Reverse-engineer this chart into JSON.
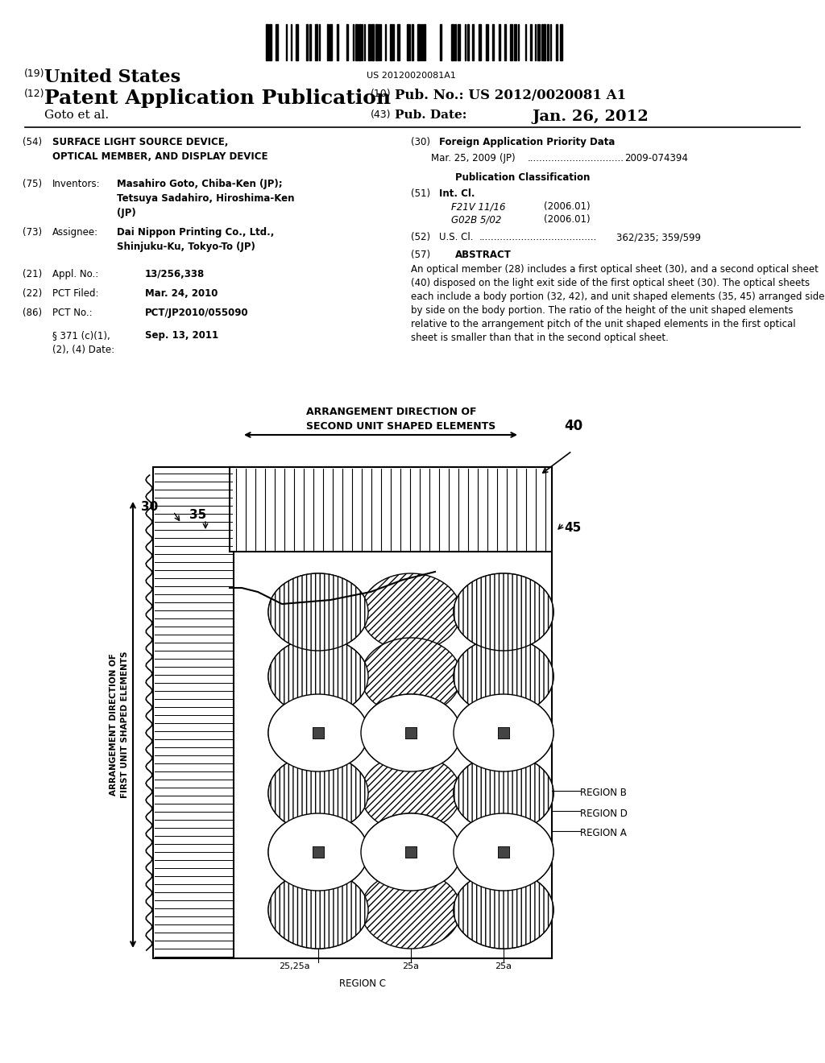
{
  "background_color": "#ffffff",
  "barcode_text": "US 20120020081A1",
  "header": {
    "country_number": "(19)",
    "country": "United States",
    "app_type_number": "(12)",
    "app_type": "Patent Application Publication",
    "pub_no_number": "(10)",
    "pub_no_label": "Pub. No.:",
    "pub_no_value": "US 2012/0020081 A1",
    "authors": "Goto et al.",
    "pub_date_number": "(43)",
    "pub_date_label": "Pub. Date:",
    "pub_date_value": "Jan. 26, 2012"
  },
  "left_col": {
    "title_num": "(54)",
    "title": "SURFACE LIGHT SOURCE DEVICE,\nOPTICAL MEMBER, AND DISPLAY DEVICE",
    "inventors_num": "(75)",
    "inventors_label": "Inventors:",
    "inventors_value": "Masahiro Goto, Chiba-Ken (JP);\nTetsuya Sadahiro, Hiroshima-Ken\n(JP)",
    "assignee_num": "(73)",
    "assignee_label": "Assignee:",
    "assignee_value": "Dai Nippon Printing Co., Ltd.,\nShinjuku-Ku, Tokyo-To (JP)",
    "appl_num": "(21)",
    "appl_label": "Appl. No.:",
    "appl_value": "13/256,338",
    "pct_filed_num": "(22)",
    "pct_filed_label": "PCT Filed:",
    "pct_filed_value": "Mar. 24, 2010",
    "pct_no_num": "(86)",
    "pct_no_label": "PCT No.:",
    "pct_no_value": "PCT/JP2010/055090",
    "section_label": "§ 371 (c)(1),\n(2), (4) Date:",
    "section_value": "Sep. 13, 2011"
  },
  "right_col": {
    "fap_num": "(30)",
    "fap_label": "Foreign Application Priority Data",
    "fap_date": "Mar. 25, 2009",
    "fap_country": "(JP)",
    "fap_dots": "................................",
    "fap_number": "2009-074394",
    "pub_class_label": "Publication Classification",
    "int_cl_num": "(51)",
    "int_cl_label": "Int. Cl.",
    "int_cl_1": "F21V 11/16",
    "int_cl_1_date": "(2006.01)",
    "int_cl_2": "G02B 5/02",
    "int_cl_2_date": "(2006.01)",
    "us_cl_num": "(52)",
    "us_cl_label": "U.S. Cl.",
    "us_cl_dots": ".......................................",
    "us_cl_value": "362/235; 359/599",
    "abstract_num": "(57)",
    "abstract_label": "ABSTRACT",
    "abstract_text": "An optical member (28) includes a first optical sheet (30), and a second optical sheet (40) disposed on the light exit side of the first optical sheet (30). The optical sheets each include a body portion (32, 42), and unit shaped elements (35, 45) arranged side by side on the body portion. The ratio of the height of the unit shaped elements relative to the arrangement pitch of the unit shaped elements in the first optical sheet is smaller than that in the second optical sheet."
  },
  "diagram": {
    "arr_dir_label": "ARRANGEMENT DIRECTION OF\nSECOND UNIT SHAPED ELEMENTS",
    "arr_dir_num": "40",
    "arr_dir_v_label": "ARRANGEMENT DIRECTION OF\nFIRST UNIT SHAPED ELEMENTS",
    "label_30": "30",
    "label_35": "35",
    "label_45": "45",
    "label_25_25a": "25,25a",
    "label_25a_1": "25a",
    "label_25a_2": "25a",
    "label_region_b": "REGION B",
    "label_region_d": "REGION D",
    "label_region_a": "REGION A",
    "label_region_c": "REGION C"
  }
}
